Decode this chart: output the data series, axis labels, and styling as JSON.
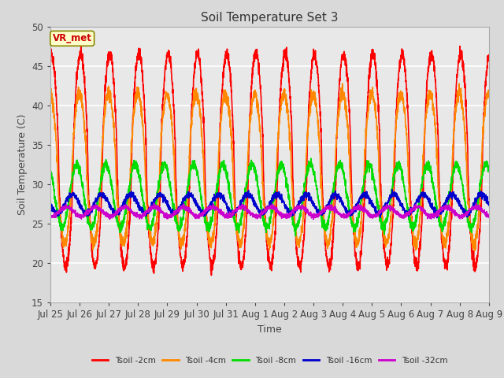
{
  "title": "Soil Temperature Set 3",
  "xlabel": "Time",
  "ylabel": "Soil Temperature (C)",
  "ylim": [
    15,
    50
  ],
  "xlim": [
    0,
    15
  ],
  "plot_bg_color": "#e8e8e8",
  "fig_bg_color": "#d9d9d9",
  "annotation_text": "VR_met",
  "annotation_bg": "#ffffcc",
  "annotation_border": "#888800",
  "series_colors": {
    "Tsoil -2cm": "#ff0000",
    "Tsoil -4cm": "#ff8800",
    "Tsoil -8cm": "#00dd00",
    "Tsoil -16cm": "#0000cc",
    "Tsoil -32cm": "#cc00cc"
  },
  "tick_labels": [
    "Jul 25",
    "Jul 26",
    "Jul 27",
    "Jul 28",
    "Jul 29",
    "Jul 30",
    "Jul 31",
    "Aug 1",
    "Aug 2",
    "Aug 3",
    "Aug 4",
    "Aug 5",
    "Aug 6",
    "Aug 7",
    "Aug 8",
    "Aug 9"
  ],
  "tick_positions": [
    0,
    1,
    2,
    3,
    4,
    5,
    6,
    7,
    8,
    9,
    10,
    11,
    12,
    13,
    14,
    15
  ],
  "yticks": [
    15,
    20,
    25,
    30,
    35,
    40,
    45,
    50
  ]
}
